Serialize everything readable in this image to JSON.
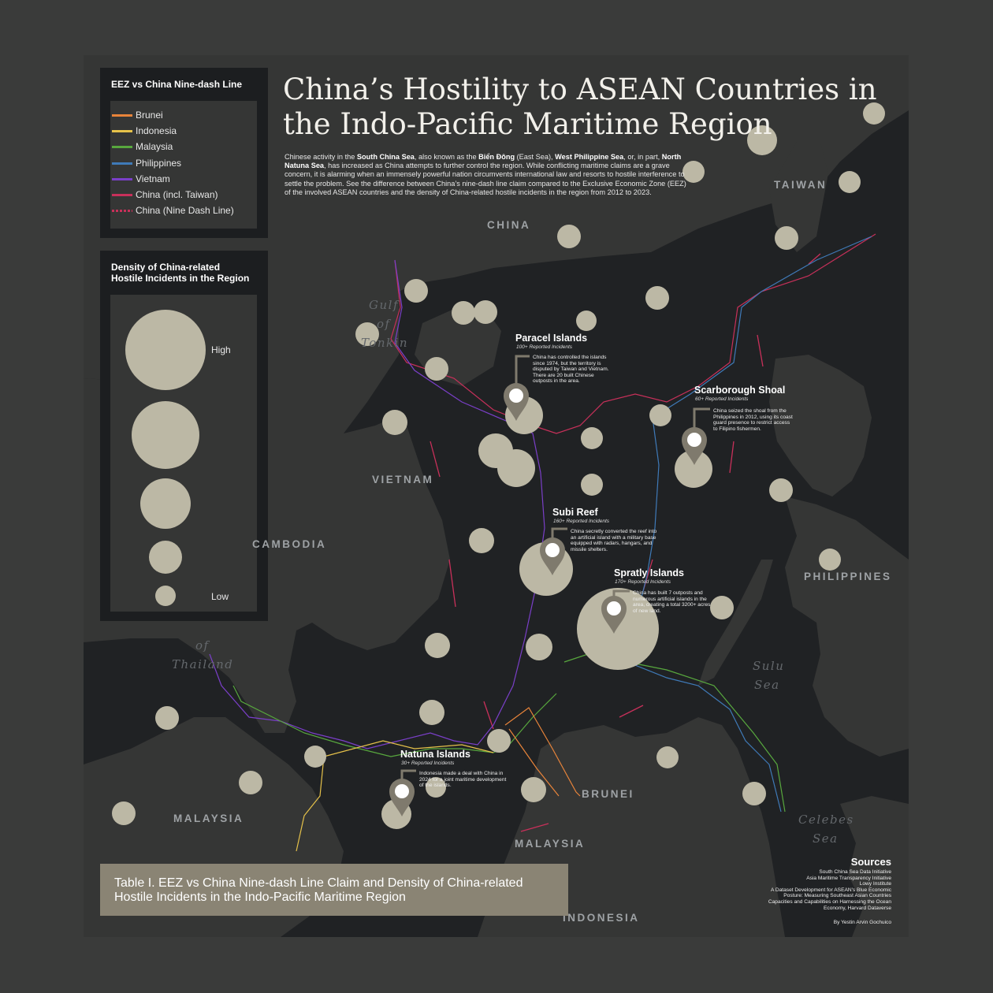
{
  "title_line1": "China’s Hostility to ASEAN Countries in",
  "title_line2": "the Indo-Pacific Maritime Region",
  "intro": [
    {
      "text": "Chinese activity in the ",
      "bold": false
    },
    {
      "text": "South China Sea",
      "bold": true
    },
    {
      "text": ", also known as the ",
      "bold": false
    },
    {
      "text": "Biển Đông",
      "bold": true
    },
    {
      "text": " (East Sea), ",
      "bold": false
    },
    {
      "text": "West Philippine Sea",
      "bold": true
    },
    {
      "text": ", or, in part, ",
      "bold": false
    },
    {
      "text": "North Natuna Sea",
      "bold": true
    },
    {
      "text": ", has increased as China attempts to further control the region. While conflicting maritime claims are a grave concern, it is alarming when an immensely powerful nation circumvents international law and resorts to hostile interference to settle the problem. See the difference between China’s nine-dash line claim compared to the Exclusive Economic Zone (EEZ) of the involved ASEAN countries and the density of China-related hostile incidents in the region from 2012 to 2023.",
      "bold": false
    }
  ],
  "eez_legend": {
    "title": "EEZ vs China Nine-dash Line",
    "items": [
      {
        "label": "Brunei",
        "color": "#e8843a",
        "dashed": false
      },
      {
        "label": "Indonesia",
        "color": "#e6c24a",
        "dashed": false
      },
      {
        "label": "Malaysia",
        "color": "#58a83e",
        "dashed": false
      },
      {
        "label": "Philippines",
        "color": "#3f7ab8",
        "dashed": false
      },
      {
        "label": "Vietnam",
        "color": "#7a3fc8",
        "dashed": false
      },
      {
        "label": "China (incl. Taiwan)",
        "color": "#c8305a",
        "dashed": false
      },
      {
        "label": "China (Nine Dash Line)",
        "color": "#c8305a",
        "dashed": true
      }
    ]
  },
  "density_legend": {
    "title_line1": "Density of China-related",
    "title_line2": "Hostile Incidents in the Region",
    "high": "High",
    "low": "Low"
  },
  "countries": {
    "china": "CHINA",
    "taiwan": "TAIWAN",
    "vietnam": "VIETNAM",
    "cambodia": "CAMBODIA",
    "philippines": "PHILIPPINES",
    "malaysia_west": "MALAYSIA",
    "malaysia_east": "MALAYSIA",
    "brunei": "BRUNEI",
    "indonesia": "INDONESIA"
  },
  "waters": {
    "gulf": "Gulf",
    "of_tonkin": "of",
    "tonkin": "Tonkin",
    "gulf_of": "of",
    "thailand": "Thailand",
    "sulu": "Sulu",
    "sulu_sea": "Sea",
    "celebes": "Celebes",
    "celebes_sea": "Sea"
  },
  "hotspots": [
    {
      "id": "paracel",
      "name": "Paracel Islands",
      "count": "100+ Reported Incidents",
      "desc": "China has controlled the islands since 1974, but the territory is disputed by Taiwan and Vietnam. There are 20 built Chinese outposts in the area."
    },
    {
      "id": "scarborough",
      "name": "Scarborough Shoal",
      "count": "60+ Reported Incidents",
      "desc": "China seized the shoal from the Philippines in 2012, using its coast guard presence to restrict access to Filipino fishermen."
    },
    {
      "id": "subi",
      "name": "Subi Reef",
      "count": "160+ Reported Incidents",
      "desc": "China secretly converted the reef into an artificial island with a military base equipped with radars, hangars, and missile shelters."
    },
    {
      "id": "spratly",
      "name": "Spratly Islands",
      "count": "170+ Reported Incidents",
      "desc": "China has built 7 outposts and numerous artificial islands in the area, creating a total 3200+ acres of new land."
    },
    {
      "id": "natuna",
      "name": "Natuna Islands",
      "count": "30+ Reported Incidents",
      "desc": "Indonesia made a deal with China in 2024 for a joint maritime development of the islands."
    }
  ],
  "caption": "Table I. EEZ vs China Nine-dash Line Claim and Density of China-related Hostile Incidents in the Indo-Pacific Maritime Region",
  "sources": {
    "title": "Sources",
    "lines": [
      "South China Sea Data Initiative",
      "Asia Maritime Transparency Initiative",
      "Lowy Institute",
      "A Dataset Development for ASEAN's Blue Economic",
      "Posture: Measuring Southeast Asian Countries",
      "Capacities and Capabilities on Harnessing the Ocean",
      "Economy, Harvard Dataverse"
    ],
    "credit": "By Yestin Arvin Gochuico"
  },
  "colors": {
    "land": "#353635",
    "sea": "#202224",
    "incident": "#bcb8a5",
    "marker": "#7f7a6d",
    "caption_bg": "#8a8474"
  }
}
